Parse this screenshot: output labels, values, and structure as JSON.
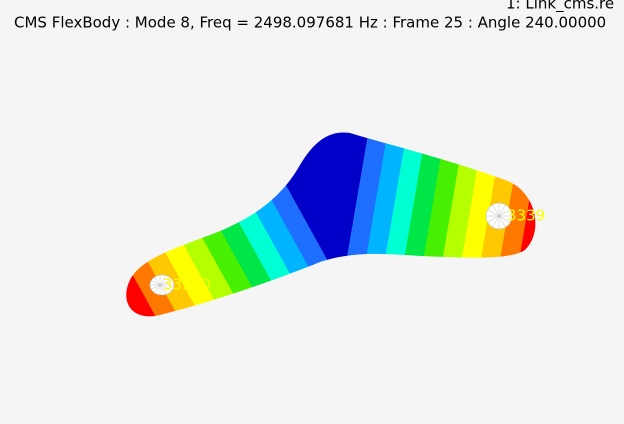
{
  "header": {
    "file": "1: Link_cms.re",
    "title": "CMS FlexBody : Mode 8, Freq = 2498.097681 Hz : Frame 25 : Angle 240.00000"
  },
  "labels": [
    "33300",
    "3339"
  ]
}
